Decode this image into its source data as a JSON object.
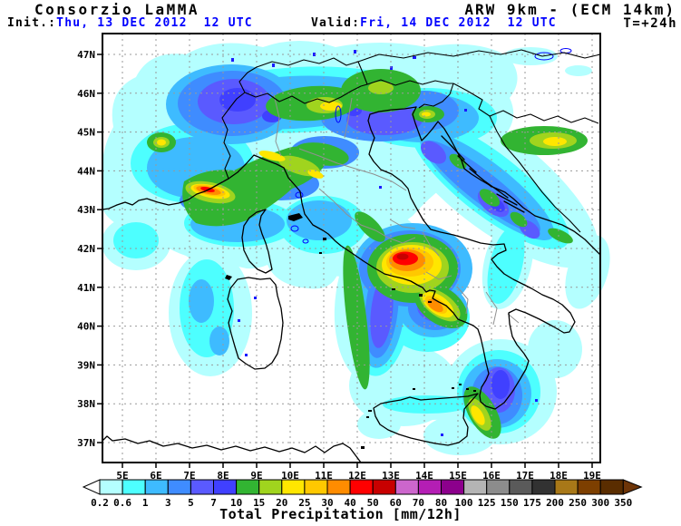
{
  "header": {
    "brand": "Consorzio LaMMA",
    "model": "ARW 9km - (ECM 14km)",
    "init_label": "Init.:",
    "init_value": "Thu, 13 DEC 2012  12 UTC",
    "valid_label": "Valid:",
    "valid_value": "Fri, 14 DEC 2012  12 UTC",
    "lead_time": "T=+24h"
  },
  "map": {
    "lat_ticks": [
      "47N",
      "46N",
      "45N",
      "44N",
      "43N",
      "42N",
      "41N",
      "40N",
      "39N",
      "38N",
      "37N"
    ],
    "lon_ticks": [
      "5E",
      "6E",
      "7E",
      "8E",
      "9E",
      "10E",
      "11E",
      "12E",
      "13E",
      "14E",
      "15E",
      "16E",
      "17E",
      "18E",
      "19E"
    ]
  },
  "colorbar": {
    "values": [
      "0.2",
      "0.6",
      "1",
      "3",
      "5",
      "7",
      "10",
      "15",
      "20",
      "25",
      "30",
      "40",
      "50",
      "60",
      "70",
      "80",
      "100",
      "125",
      "150",
      "175",
      "200",
      "250",
      "300",
      "350"
    ],
    "cell_colors": [
      "#B4FFFF",
      "#4DFFFF",
      "#3EBBFF",
      "#3F8CFF",
      "#5A5AFF",
      "#4040FF",
      "#32B432",
      "#A0D41E",
      "#FFE600",
      "#FFC800",
      "#FF8C00",
      "#FF0000",
      "#C80000",
      "#CC66CC",
      "#B41EB4",
      "#8C008C",
      "#B4B4B4",
      "#8C8C8C",
      "#5A5A5A",
      "#323232",
      "#A87818",
      "#7D3F00",
      "#5A2D00"
    ],
    "left_arrow_color": "#FFFFFF",
    "right_arrow_color": "#6E3508"
  },
  "caption": "Total Precipitation [mm/12h]",
  "colors": {
    "text_blue": "#0000FF",
    "text_black": "#000000",
    "grid_gray": "#999999"
  }
}
